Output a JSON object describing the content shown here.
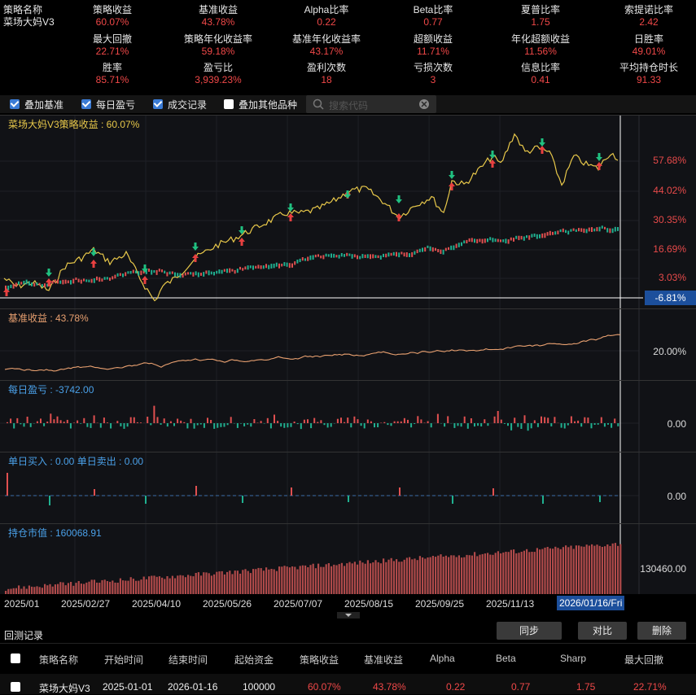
{
  "stats": [
    {
      "label": "策略名称",
      "value": "菜场大妈V3"
    },
    {
      "label": "策略收益",
      "value": "60.07%"
    },
    {
      "label": "基准收益",
      "value": "43.78%"
    },
    {
      "label": "Alpha比率",
      "value": "0.22"
    },
    {
      "label": "Beta比率",
      "value": "0.77"
    },
    {
      "label": "夏普比率",
      "value": "1.75"
    },
    {
      "label": "索提诺比率",
      "value": "2.42"
    },
    {
      "label": "最大回撤",
      "value": "22.71%"
    },
    {
      "label": "策略年化收益率",
      "value": "59.18%"
    },
    {
      "label": "基准年化收益率",
      "value": "43.17%"
    },
    {
      "label": "超额收益",
      "value": "11.71%"
    },
    {
      "label": "年化超额收益",
      "value": "11.56%"
    },
    {
      "label": "日胜率",
      "value": "49.01%"
    },
    {
      "label": "胜率",
      "value": "85.71%"
    },
    {
      "label": "盈亏比",
      "value": "3,939.23%"
    },
    {
      "label": "盈利次数",
      "value": "18"
    },
    {
      "label": "亏损次数",
      "value": "3"
    },
    {
      "label": "信息比率",
      "value": "0.41"
    },
    {
      "label": "平均持仓时长",
      "value": "91.33"
    }
  ],
  "options": [
    {
      "label": "叠加基准",
      "checked": true
    },
    {
      "label": "每日盈亏",
      "checked": true
    },
    {
      "label": "成交记录",
      "checked": true
    },
    {
      "label": "叠加其他品种",
      "checked": false
    }
  ],
  "search": {
    "placeholder": "搜索代码"
  },
  "panels": {
    "strategy": {
      "title": "菜场大妈V3策略收益 : 60.07%",
      "axis": [
        "57.68%",
        "44.02%",
        "30.35%",
        "16.69%",
        "3.03%"
      ],
      "current": "-6.81%"
    },
    "benchmark": {
      "title": "基准收益 : 43.78%",
      "axis": [
        "20.00%"
      ]
    },
    "daily_pnl": {
      "title": "每日盈亏 : -3742.00",
      "axis": [
        "0.00"
      ]
    },
    "buy_sell": {
      "title": "单日买入 : 0.00  单日卖出 : 0.00",
      "axis": [
        "0.00"
      ]
    },
    "position": {
      "title": "持仓市值 : 160068.91",
      "axis": [
        "130460.00"
      ]
    }
  },
  "dates": [
    "2025/01",
    "2025/02/27",
    "2025/04/10",
    "2025/05/26",
    "2025/07/07",
    "2025/08/15",
    "2025/09/25",
    "2025/11/13"
  ],
  "selected_date": "2026/01/16/Fri",
  "records": {
    "title": "回测记录",
    "buttons": [
      "同步",
      "对比",
      "删除"
    ],
    "headers": [
      "策略名称",
      "开始时间",
      "结束时间",
      "起始资金",
      "策略收益",
      "基准收益",
      "Alpha",
      "Beta",
      "Sharp",
      "最大回撤"
    ],
    "row": [
      "菜场大妈V3",
      "2025-01-01",
      "2026-01-16",
      "100000",
      "60.07%",
      "43.78%",
      "0.22",
      "0.77",
      "1.75",
      "22.71%"
    ]
  },
  "colors": {
    "strategy_line": "#e8c84a",
    "benchmark_line": "#e8a070",
    "up": "#e05050",
    "down": "#20b090",
    "buy_arrow": "#e84040",
    "sell_arrow": "#20c080"
  }
}
